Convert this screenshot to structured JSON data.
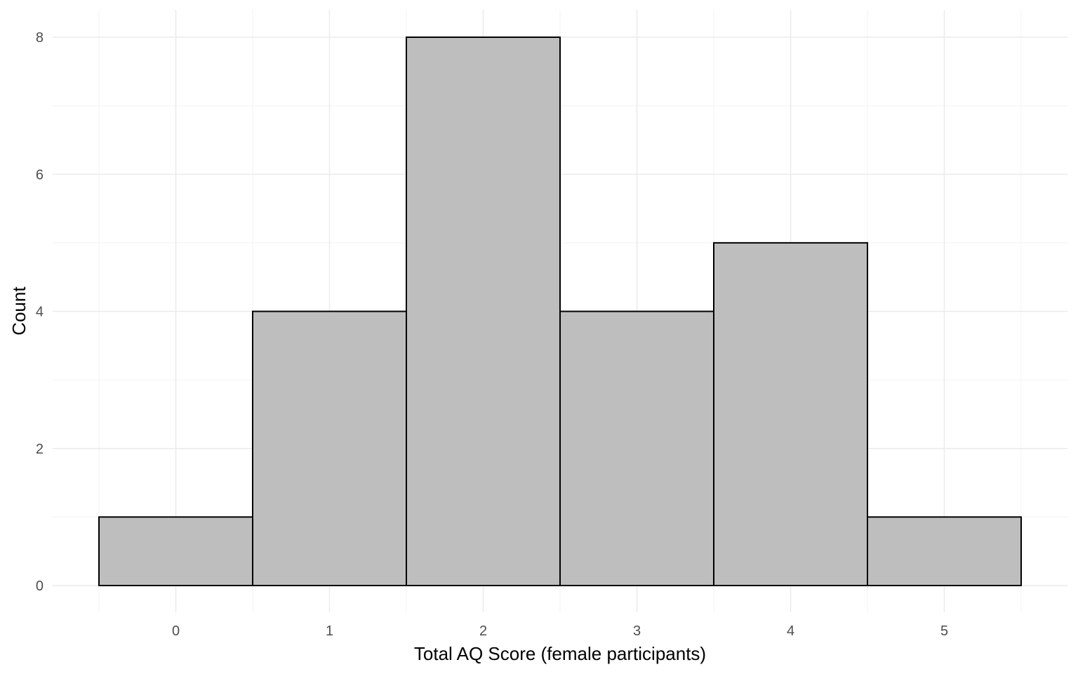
{
  "chart_data": {
    "type": "bar",
    "subtype": "histogram",
    "x": [
      0,
      1,
      2,
      3,
      4,
      5
    ],
    "values": [
      1,
      4,
      8,
      4,
      5,
      1
    ],
    "bin_width": 1,
    "xlim": [
      -0.5,
      5.5
    ],
    "ylim": [
      0,
      8
    ],
    "x_ticks": [
      "0",
      "1",
      "2",
      "3",
      "4",
      "5"
    ],
    "y_ticks": [
      "0",
      "2",
      "4",
      "6",
      "8"
    ],
    "xlabel": "Total AQ Score (female participants)",
    "ylabel": "Count",
    "grid": true,
    "legend": "none",
    "colors": {
      "bar_fill": "#bebebe",
      "bar_stroke": "#000000",
      "grid_major": "#ebebeb",
      "grid_minor": "#f5f5f5",
      "tick_text": "#4d4d4d",
      "title_text": "#000000"
    }
  }
}
